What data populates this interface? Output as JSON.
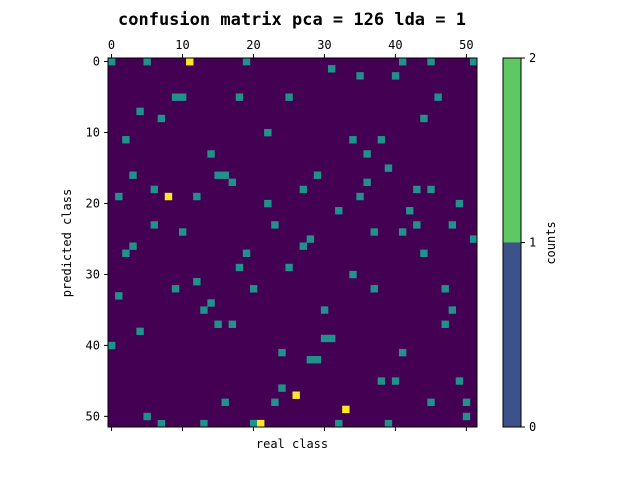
{
  "chart_data": {
    "type": "heatmap",
    "title": "confusion matrix pca = 126 lda = 1",
    "xlabel": "real class",
    "ylabel": "predicted class",
    "x_axis_position": "top",
    "grid": false,
    "n_classes": 52,
    "x_ticks": [
      0,
      10,
      20,
      30,
      40,
      50
    ],
    "y_ticks": [
      0,
      10,
      20,
      30,
      40,
      50
    ],
    "colorbar": {
      "label": "counts",
      "ticks": [
        0,
        1,
        2
      ],
      "range": [
        0,
        2
      ],
      "bins": [
        {
          "from": 0,
          "to": 1,
          "color": "#3b528b"
        },
        {
          "from": 1,
          "to": 2,
          "color": "#5ec962"
        }
      ]
    },
    "colors": {
      "0": "#440154",
      "1": "#21918c",
      "2": "#fde725"
    },
    "nonzero_cells": [
      {
        "row": 0,
        "col": 0,
        "value": 1
      },
      {
        "row": 0,
        "col": 5,
        "value": 1
      },
      {
        "row": 0,
        "col": 11,
        "value": 2
      },
      {
        "row": 0,
        "col": 19,
        "value": 1
      },
      {
        "row": 0,
        "col": 41,
        "value": 1
      },
      {
        "row": 0,
        "col": 45,
        "value": 1
      },
      {
        "row": 0,
        "col": 51,
        "value": 1
      },
      {
        "row": 1,
        "col": 31,
        "value": 1
      },
      {
        "row": 2,
        "col": 35,
        "value": 1
      },
      {
        "row": 2,
        "col": 40,
        "value": 1
      },
      {
        "row": 5,
        "col": 9,
        "value": 1
      },
      {
        "row": 5,
        "col": 10,
        "value": 1
      },
      {
        "row": 5,
        "col": 18,
        "value": 1
      },
      {
        "row": 5,
        "col": 25,
        "value": 1
      },
      {
        "row": 5,
        "col": 46,
        "value": 1
      },
      {
        "row": 7,
        "col": 4,
        "value": 1
      },
      {
        "row": 8,
        "col": 7,
        "value": 1
      },
      {
        "row": 8,
        "col": 44,
        "value": 1
      },
      {
        "row": 10,
        "col": 22,
        "value": 1
      },
      {
        "row": 11,
        "col": 2,
        "value": 1
      },
      {
        "row": 11,
        "col": 34,
        "value": 1
      },
      {
        "row": 11,
        "col": 38,
        "value": 1
      },
      {
        "row": 13,
        "col": 14,
        "value": 1
      },
      {
        "row": 13,
        "col": 36,
        "value": 1
      },
      {
        "row": 15,
        "col": 39,
        "value": 1
      },
      {
        "row": 16,
        "col": 3,
        "value": 1
      },
      {
        "row": 16,
        "col": 15,
        "value": 1
      },
      {
        "row": 16,
        "col": 16,
        "value": 1
      },
      {
        "row": 16,
        "col": 29,
        "value": 1
      },
      {
        "row": 17,
        "col": 17,
        "value": 1
      },
      {
        "row": 17,
        "col": 36,
        "value": 1
      },
      {
        "row": 18,
        "col": 6,
        "value": 1
      },
      {
        "row": 18,
        "col": 27,
        "value": 1
      },
      {
        "row": 18,
        "col": 43,
        "value": 1
      },
      {
        "row": 18,
        "col": 45,
        "value": 1
      },
      {
        "row": 19,
        "col": 1,
        "value": 1
      },
      {
        "row": 19,
        "col": 8,
        "value": 2
      },
      {
        "row": 19,
        "col": 12,
        "value": 1
      },
      {
        "row": 19,
        "col": 35,
        "value": 1
      },
      {
        "row": 20,
        "col": 22,
        "value": 1
      },
      {
        "row": 20,
        "col": 49,
        "value": 1
      },
      {
        "row": 21,
        "col": 32,
        "value": 1
      },
      {
        "row": 21,
        "col": 42,
        "value": 1
      },
      {
        "row": 23,
        "col": 6,
        "value": 1
      },
      {
        "row": 23,
        "col": 23,
        "value": 1
      },
      {
        "row": 23,
        "col": 43,
        "value": 1
      },
      {
        "row": 23,
        "col": 48,
        "value": 1
      },
      {
        "row": 24,
        "col": 10,
        "value": 1
      },
      {
        "row": 24,
        "col": 37,
        "value": 1
      },
      {
        "row": 24,
        "col": 41,
        "value": 1
      },
      {
        "row": 25,
        "col": 28,
        "value": 1
      },
      {
        "row": 25,
        "col": 51,
        "value": 1
      },
      {
        "row": 26,
        "col": 3,
        "value": 1
      },
      {
        "row": 26,
        "col": 27,
        "value": 1
      },
      {
        "row": 27,
        "col": 2,
        "value": 1
      },
      {
        "row": 27,
        "col": 19,
        "value": 1
      },
      {
        "row": 27,
        "col": 44,
        "value": 1
      },
      {
        "row": 29,
        "col": 18,
        "value": 1
      },
      {
        "row": 29,
        "col": 25,
        "value": 1
      },
      {
        "row": 30,
        "col": 34,
        "value": 1
      },
      {
        "row": 31,
        "col": 12,
        "value": 1
      },
      {
        "row": 32,
        "col": 9,
        "value": 1
      },
      {
        "row": 32,
        "col": 20,
        "value": 1
      },
      {
        "row": 32,
        "col": 37,
        "value": 1
      },
      {
        "row": 32,
        "col": 47,
        "value": 1
      },
      {
        "row": 33,
        "col": 1,
        "value": 1
      },
      {
        "row": 34,
        "col": 14,
        "value": 1
      },
      {
        "row": 35,
        "col": 13,
        "value": 1
      },
      {
        "row": 35,
        "col": 30,
        "value": 1
      },
      {
        "row": 35,
        "col": 48,
        "value": 1
      },
      {
        "row": 37,
        "col": 15,
        "value": 1
      },
      {
        "row": 37,
        "col": 17,
        "value": 1
      },
      {
        "row": 37,
        "col": 47,
        "value": 1
      },
      {
        "row": 38,
        "col": 4,
        "value": 1
      },
      {
        "row": 39,
        "col": 30,
        "value": 1
      },
      {
        "row": 39,
        "col": 31,
        "value": 1
      },
      {
        "row": 40,
        "col": 0,
        "value": 1
      },
      {
        "row": 41,
        "col": 24,
        "value": 1
      },
      {
        "row": 41,
        "col": 41,
        "value": 1
      },
      {
        "row": 42,
        "col": 28,
        "value": 1
      },
      {
        "row": 42,
        "col": 29,
        "value": 1
      },
      {
        "row": 45,
        "col": 38,
        "value": 1
      },
      {
        "row": 45,
        "col": 40,
        "value": 1
      },
      {
        "row": 45,
        "col": 49,
        "value": 1
      },
      {
        "row": 46,
        "col": 24,
        "value": 1
      },
      {
        "row": 47,
        "col": 26,
        "value": 2
      },
      {
        "row": 48,
        "col": 16,
        "value": 1
      },
      {
        "row": 48,
        "col": 23,
        "value": 1
      },
      {
        "row": 48,
        "col": 45,
        "value": 1
      },
      {
        "row": 48,
        "col": 50,
        "value": 1
      },
      {
        "row": 49,
        "col": 33,
        "value": 2
      },
      {
        "row": 50,
        "col": 5,
        "value": 1
      },
      {
        "row": 50,
        "col": 50,
        "value": 1
      },
      {
        "row": 51,
        "col": 7,
        "value": 1
      },
      {
        "row": 51,
        "col": 13,
        "value": 1
      },
      {
        "row": 51,
        "col": 20,
        "value": 1
      },
      {
        "row": 51,
        "col": 21,
        "value": 2
      },
      {
        "row": 51,
        "col": 32,
        "value": 1
      },
      {
        "row": 51,
        "col": 39,
        "value": 1
      }
    ]
  }
}
